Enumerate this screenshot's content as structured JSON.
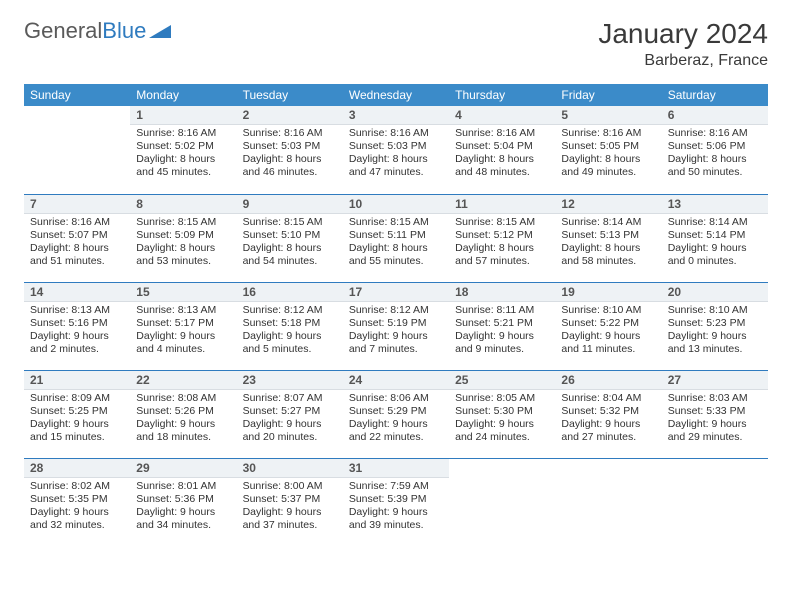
{
  "logo": {
    "text_gray": "General",
    "text_blue": "Blue"
  },
  "title": "January 2024",
  "location": "Barberaz, France",
  "colors": {
    "header_bg": "#3b8bc9",
    "header_fg": "#ffffff",
    "rule": "#2f7bbf",
    "daynum_bg": "#eef2f5"
  },
  "day_headers": [
    "Sunday",
    "Monday",
    "Tuesday",
    "Wednesday",
    "Thursday",
    "Friday",
    "Saturday"
  ],
  "weeks": [
    [
      {
        "n": "",
        "sr": "",
        "ss": "",
        "dl": ""
      },
      {
        "n": "1",
        "sr": "8:16 AM",
        "ss": "5:02 PM",
        "dl": "8 hours and 45 minutes."
      },
      {
        "n": "2",
        "sr": "8:16 AM",
        "ss": "5:03 PM",
        "dl": "8 hours and 46 minutes."
      },
      {
        "n": "3",
        "sr": "8:16 AM",
        "ss": "5:03 PM",
        "dl": "8 hours and 47 minutes."
      },
      {
        "n": "4",
        "sr": "8:16 AM",
        "ss": "5:04 PM",
        "dl": "8 hours and 48 minutes."
      },
      {
        "n": "5",
        "sr": "8:16 AM",
        "ss": "5:05 PM",
        "dl": "8 hours and 49 minutes."
      },
      {
        "n": "6",
        "sr": "8:16 AM",
        "ss": "5:06 PM",
        "dl": "8 hours and 50 minutes."
      }
    ],
    [
      {
        "n": "7",
        "sr": "8:16 AM",
        "ss": "5:07 PM",
        "dl": "8 hours and 51 minutes."
      },
      {
        "n": "8",
        "sr": "8:15 AM",
        "ss": "5:09 PM",
        "dl": "8 hours and 53 minutes."
      },
      {
        "n": "9",
        "sr": "8:15 AM",
        "ss": "5:10 PM",
        "dl": "8 hours and 54 minutes."
      },
      {
        "n": "10",
        "sr": "8:15 AM",
        "ss": "5:11 PM",
        "dl": "8 hours and 55 minutes."
      },
      {
        "n": "11",
        "sr": "8:15 AM",
        "ss": "5:12 PM",
        "dl": "8 hours and 57 minutes."
      },
      {
        "n": "12",
        "sr": "8:14 AM",
        "ss": "5:13 PM",
        "dl": "8 hours and 58 minutes."
      },
      {
        "n": "13",
        "sr": "8:14 AM",
        "ss": "5:14 PM",
        "dl": "9 hours and 0 minutes."
      }
    ],
    [
      {
        "n": "14",
        "sr": "8:13 AM",
        "ss": "5:16 PM",
        "dl": "9 hours and 2 minutes."
      },
      {
        "n": "15",
        "sr": "8:13 AM",
        "ss": "5:17 PM",
        "dl": "9 hours and 4 minutes."
      },
      {
        "n": "16",
        "sr": "8:12 AM",
        "ss": "5:18 PM",
        "dl": "9 hours and 5 minutes."
      },
      {
        "n": "17",
        "sr": "8:12 AM",
        "ss": "5:19 PM",
        "dl": "9 hours and 7 minutes."
      },
      {
        "n": "18",
        "sr": "8:11 AM",
        "ss": "5:21 PM",
        "dl": "9 hours and 9 minutes."
      },
      {
        "n": "19",
        "sr": "8:10 AM",
        "ss": "5:22 PM",
        "dl": "9 hours and 11 minutes."
      },
      {
        "n": "20",
        "sr": "8:10 AM",
        "ss": "5:23 PM",
        "dl": "9 hours and 13 minutes."
      }
    ],
    [
      {
        "n": "21",
        "sr": "8:09 AM",
        "ss": "5:25 PM",
        "dl": "9 hours and 15 minutes."
      },
      {
        "n": "22",
        "sr": "8:08 AM",
        "ss": "5:26 PM",
        "dl": "9 hours and 18 minutes."
      },
      {
        "n": "23",
        "sr": "8:07 AM",
        "ss": "5:27 PM",
        "dl": "9 hours and 20 minutes."
      },
      {
        "n": "24",
        "sr": "8:06 AM",
        "ss": "5:29 PM",
        "dl": "9 hours and 22 minutes."
      },
      {
        "n": "25",
        "sr": "8:05 AM",
        "ss": "5:30 PM",
        "dl": "9 hours and 24 minutes."
      },
      {
        "n": "26",
        "sr": "8:04 AM",
        "ss": "5:32 PM",
        "dl": "9 hours and 27 minutes."
      },
      {
        "n": "27",
        "sr": "8:03 AM",
        "ss": "5:33 PM",
        "dl": "9 hours and 29 minutes."
      }
    ],
    [
      {
        "n": "28",
        "sr": "8:02 AM",
        "ss": "5:35 PM",
        "dl": "9 hours and 32 minutes."
      },
      {
        "n": "29",
        "sr": "8:01 AM",
        "ss": "5:36 PM",
        "dl": "9 hours and 34 minutes."
      },
      {
        "n": "30",
        "sr": "8:00 AM",
        "ss": "5:37 PM",
        "dl": "9 hours and 37 minutes."
      },
      {
        "n": "31",
        "sr": "7:59 AM",
        "ss": "5:39 PM",
        "dl": "9 hours and 39 minutes."
      },
      {
        "n": "",
        "sr": "",
        "ss": "",
        "dl": ""
      },
      {
        "n": "",
        "sr": "",
        "ss": "",
        "dl": ""
      },
      {
        "n": "",
        "sr": "",
        "ss": "",
        "dl": ""
      }
    ]
  ],
  "labels": {
    "sunrise": "Sunrise: ",
    "sunset": "Sunset: ",
    "daylight": "Daylight: "
  }
}
